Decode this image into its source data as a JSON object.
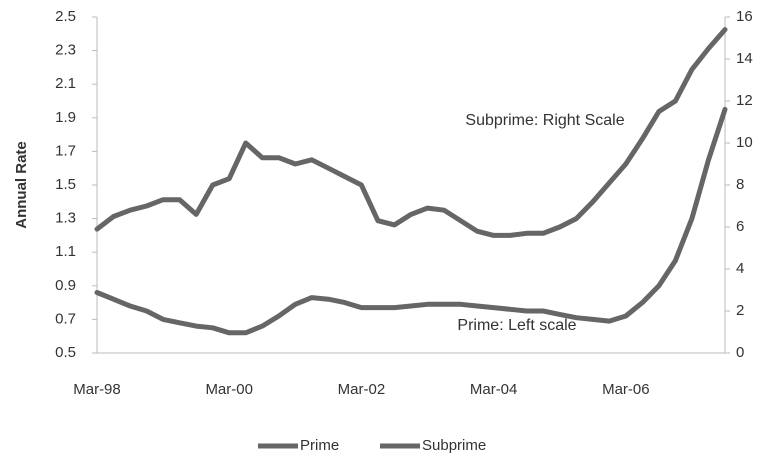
{
  "chart_data": {
    "type": "line",
    "y_label": "Annual Rate",
    "categories": [
      "Mar-98",
      null,
      null,
      null,
      null,
      null,
      null,
      null,
      "Mar-00",
      null,
      null,
      null,
      null,
      null,
      null,
      null,
      "Mar-02",
      null,
      null,
      null,
      null,
      null,
      null,
      null,
      "Mar-04",
      null,
      null,
      null,
      null,
      null,
      null,
      null,
      "Mar-06",
      null,
      null,
      null,
      null,
      null,
      null
    ],
    "series": [
      {
        "name": "Prime",
        "color": "#666666",
        "values": [
          0.86,
          0.82,
          0.78,
          0.75,
          0.7,
          0.68,
          0.66,
          0.65,
          0.62,
          0.62,
          0.66,
          0.72,
          0.79,
          0.83,
          0.82,
          0.8,
          0.77,
          0.77,
          0.77,
          0.78,
          0.79,
          0.79,
          0.79,
          0.78,
          0.77,
          0.76,
          0.75,
          0.75,
          0.73,
          0.71,
          0.7,
          0.69,
          0.72,
          0.8,
          0.9,
          1.05,
          1.3,
          1.65,
          1.95
        ]
      },
      {
        "name": "Subprime",
        "color": "#666666",
        "axis": "y2",
        "values": [
          5.9,
          6.5,
          6.8,
          7.0,
          7.3,
          7.3,
          6.6,
          8.0,
          8.3,
          10.0,
          9.3,
          9.3,
          9.0,
          9.2,
          8.8,
          8.4,
          8.0,
          6.3,
          6.1,
          6.6,
          6.9,
          6.8,
          6.3,
          5.8,
          5.6,
          5.6,
          5.7,
          5.7,
          6.0,
          6.4,
          7.2,
          8.1,
          9.0,
          10.2,
          11.5,
          12.0,
          13.5,
          14.5,
          15.4
        ]
      }
    ],
    "ylim": [
      0.5,
      2.5
    ],
    "yticks": [
      0.5,
      0.7,
      0.9,
      1.1,
      1.3,
      1.5,
      1.7,
      1.9,
      2.1,
      2.3,
      2.5
    ],
    "y2lim": [
      0,
      16
    ],
    "y2ticks": [
      0,
      2,
      4,
      6,
      8,
      10,
      12,
      14,
      16
    ],
    "annotations": [
      "Subprime: Right Scale",
      "Prime: Left scale"
    ],
    "legend": "bottom"
  }
}
